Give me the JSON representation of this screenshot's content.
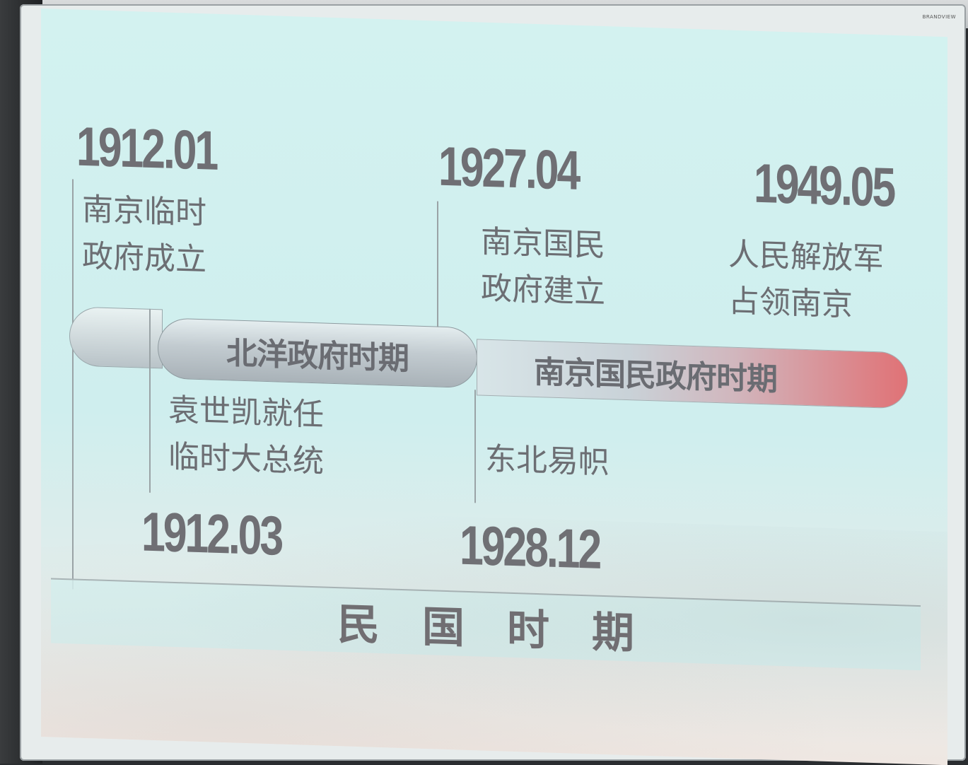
{
  "brand": "BRANDVIEW",
  "events_top": [
    {
      "date": "1912.01",
      "desc": "南京临时\n政府成立"
    },
    {
      "date": "1927.04",
      "desc": "南京国民\n政府建立"
    },
    {
      "date": "1949.05",
      "desc": "人民解放军\n占领南京"
    }
  ],
  "events_bottom": [
    {
      "date": "1912.03",
      "desc": "袁世凯就任\n临时大总统"
    },
    {
      "date": "1928.12",
      "desc": "东北易帜"
    }
  ],
  "periods": [
    "北洋政府时期",
    "南京国民政府时期"
  ],
  "footer_title": "民国时期",
  "colors": {
    "text": "#6f6f74",
    "accent_red": "#e07276",
    "background": "#d3f2f0"
  }
}
